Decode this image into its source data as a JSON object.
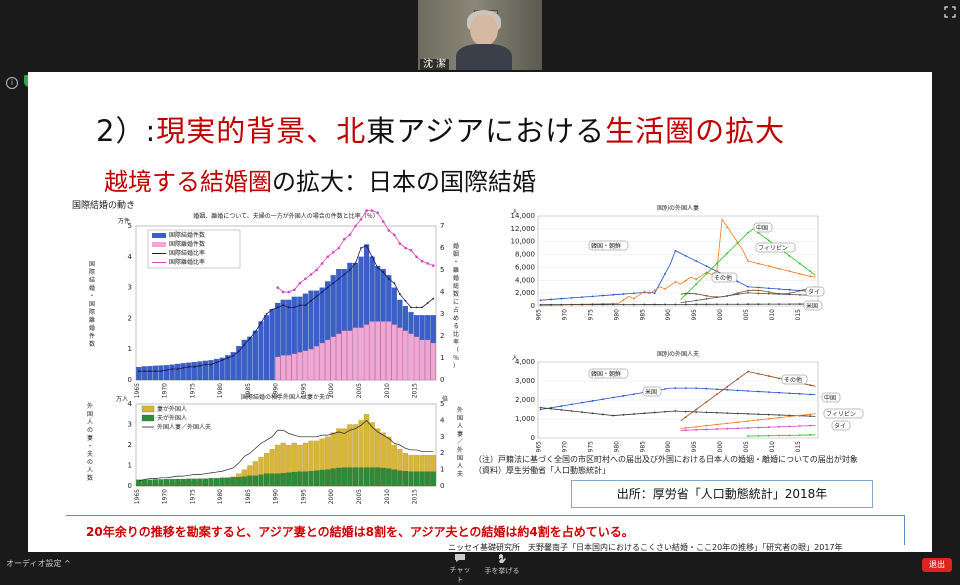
{
  "meeting": {
    "participant_name": "沈 潔",
    "audio_settings_label": "オーディオ設定",
    "chat_label": "チャット",
    "raise_hand_label": "手を挙げる",
    "exit_label": "退出"
  },
  "slide": {
    "title_num": "2）:",
    "title_red1": "現実的背景、北",
    "title_black": "東アジアにおける",
    "title_red2": "生活圏の拡大",
    "subtitle_red": "越境する結婚圏",
    "subtitle_black": "の拡大：日本の国際結婚",
    "section_label": "国際結婚の動き",
    "note_line1": "（注）戸籍法に基づく全国の市区町村への届出及び外国における日本人の婚姻・離婚についての届出が対象",
    "note_line2": "（資料）厚生労働省「人口動態統計」",
    "source": "出所：厚労省「人口動態統計」2018年",
    "bottom_text": "20年余りの推移を勘案すると、アジア妻との結婚は8割を、アジア夫との結婚は約4割を占めている。",
    "citation": "ニッセイ基礎研究所　天野馨南子「日本国内におけるこくさい結婚・ここ20年の推移」「研究者の眼」2017年"
  },
  "chart_data": [
    {
      "type": "bar",
      "title": "婚姻、離婚について、夫婦の一方が外国人の場合の件数と比率（％）",
      "ylabel": "国際結婚・国際離婚件数",
      "y_unit": "万件",
      "y2label": "婚姻・離婚総数に占める比率（％）",
      "ylim": [
        0,
        5
      ],
      "y2lim": [
        0,
        7
      ],
      "legend": [
        "国際結婚件数",
        "国際離婚件数",
        "国際結婚比率",
        "国際離婚比率"
      ],
      "x_ticks": [
        "1965",
        "1970",
        "1975",
        "1980",
        "1985",
        "1990",
        "1995",
        "2000",
        "2005",
        "2010",
        "2015"
      ],
      "x_start": 1965,
      "marriage_count": [
        0.42,
        0.44,
        0.45,
        0.46,
        0.47,
        0.48,
        0.5,
        0.52,
        0.54,
        0.56,
        0.58,
        0.6,
        0.62,
        0.64,
        0.68,
        0.72,
        0.8,
        0.9,
        1.1,
        1.3,
        1.4,
        1.6,
        1.9,
        2.1,
        2.3,
        2.5,
        2.6,
        2.6,
        2.7,
        2.7,
        2.8,
        2.9,
        2.9,
        3.0,
        3.2,
        3.4,
        3.6,
        3.6,
        3.8,
        3.8,
        4.0,
        4.4,
        4.0,
        3.7,
        3.6,
        3.4,
        3.0,
        2.6,
        2.4,
        2.2,
        2.1,
        2.1,
        2.1,
        2.1
      ],
      "divorce_count": [
        0,
        0,
        0,
        0,
        0,
        0,
        0,
        0,
        0,
        0,
        0,
        0,
        0,
        0,
        0,
        0,
        0,
        0,
        0,
        0,
        0,
        0,
        0,
        0,
        0,
        0.75,
        0.8,
        0.8,
        0.85,
        0.9,
        0.95,
        1.0,
        1.1,
        1.2,
        1.3,
        1.4,
        1.5,
        1.6,
        1.6,
        1.7,
        1.7,
        1.8,
        1.9,
        1.9,
        1.9,
        1.9,
        1.8,
        1.7,
        1.6,
        1.5,
        1.4,
        1.3,
        1.3,
        1.2
      ],
      "marriage_rate": [
        0.4,
        0.4,
        0.4,
        0.4,
        0.4,
        0.45,
        0.5,
        0.5,
        0.55,
        0.6,
        0.6,
        0.65,
        0.7,
        0.7,
        0.8,
        0.9,
        1.0,
        1.1,
        1.3,
        1.6,
        1.9,
        2.2,
        2.6,
        3.0,
        3.2,
        3.3,
        3.4,
        3.3,
        3.3,
        3.4,
        3.4,
        3.6,
        3.8,
        4.0,
        4.2,
        4.4,
        4.6,
        4.8,
        5.0,
        5.3,
        6.0,
        6.1,
        5.6,
        5.1,
        4.9,
        4.6,
        4.4,
        3.9,
        3.6,
        3.3,
        3.3,
        3.3,
        3.5,
        3.7
      ],
      "divorce_rate": [
        null,
        null,
        null,
        null,
        null,
        null,
        null,
        null,
        null,
        null,
        null,
        null,
        null,
        null,
        null,
        null,
        null,
        null,
        null,
        null,
        null,
        null,
        null,
        null,
        null,
        4.2,
        4.0,
        4.0,
        4.1,
        4.4,
        4.6,
        4.8,
        5.0,
        5.3,
        5.6,
        5.8,
        6.0,
        6.4,
        6.6,
        7.0,
        7.3,
        7.7,
        7.7,
        7.6,
        7.2,
        6.8,
        6.6,
        6.2,
        6.0,
        5.9,
        5.6,
        5.4,
        5.3,
        5.2
      ]
    },
    {
      "type": "bar",
      "title": "国際結婚の相手外国人は妻か夫か",
      "ylabel": "外国人の妻・夫の人数",
      "y_unit": "万人",
      "y2label": "外国人妻／外国人夫",
      "y2_unit": "倍",
      "ylim": [
        0,
        4
      ],
      "y2lim": [
        0,
        5
      ],
      "legend": [
        "妻が外国人",
        "夫が外国人",
        "外国人妻／外国人夫"
      ],
      "x_ticks": [
        "1965",
        "1970",
        "1975",
        "1980",
        "1985",
        "1990",
        "1995",
        "2000",
        "2005",
        "2010",
        "2015"
      ],
      "x_start": 1965,
      "wife_foreign": [
        0.1,
        0.1,
        0.12,
        0.12,
        0.14,
        0.15,
        0.16,
        0.18,
        0.2,
        0.2,
        0.22,
        0.24,
        0.25,
        0.27,
        0.3,
        0.35,
        0.4,
        0.45,
        0.6,
        0.8,
        1.0,
        1.2,
        1.4,
        1.6,
        1.8,
        2.0,
        2.1,
        2.0,
        2.1,
        2.0,
        2.1,
        2.2,
        2.2,
        2.3,
        2.4,
        2.6,
        2.8,
        2.8,
        3.0,
        3.0,
        3.2,
        3.5,
        3.1,
        2.8,
        2.6,
        2.4,
        2.0,
        1.8,
        1.6,
        1.5,
        1.5,
        1.5,
        1.5,
        1.5
      ],
      "husband_foreign": [
        0.3,
        0.3,
        0.3,
        0.32,
        0.32,
        0.33,
        0.33,
        0.34,
        0.34,
        0.35,
        0.35,
        0.36,
        0.36,
        0.38,
        0.38,
        0.4,
        0.4,
        0.42,
        0.43,
        0.45,
        0.5,
        0.5,
        0.55,
        0.6,
        0.6,
        0.6,
        0.62,
        0.65,
        0.68,
        0.7,
        0.7,
        0.72,
        0.75,
        0.78,
        0.8,
        0.85,
        0.88,
        0.9,
        0.9,
        0.9,
        0.9,
        0.9,
        0.9,
        0.9,
        0.88,
        0.85,
        0.8,
        0.75,
        0.72,
        0.7,
        0.7,
        0.7,
        0.7,
        0.7
      ],
      "ratio": [
        0.3,
        0.4,
        0.45,
        0.45,
        0.5,
        0.5,
        0.55,
        0.6,
        0.6,
        0.65,
        0.7,
        0.7,
        0.75,
        0.8,
        0.85,
        0.9,
        1.0,
        1.1,
        1.4,
        1.8,
        2.0,
        2.3,
        2.6,
        2.8,
        3.0,
        3.4,
        3.4,
        3.2,
        3.1,
        3.0,
        3.0,
        3.0,
        3.0,
        3.1,
        3.1,
        3.2,
        3.3,
        3.2,
        3.4,
        3.5,
        3.7,
        4.0,
        3.6,
        3.3,
        3.1,
        2.9,
        2.6,
        2.5,
        2.3,
        2.2,
        2.2,
        2.1,
        2.1,
        2.1
      ]
    },
    {
      "type": "line",
      "title": "国別の外国人妻",
      "y_unit": "人",
      "ylim": [
        0,
        14000
      ],
      "y_ticks": [
        "0",
        "2,000",
        "4,000",
        "6,000",
        "8,000",
        "10,000",
        "12,000",
        "14,000"
      ],
      "x_ticks": [
        "1965",
        "1970",
        "1975",
        "1980",
        "1985",
        "1990",
        "1995",
        "2000",
        "2005",
        "2010",
        "2015"
      ],
      "series_labels": [
        "中国",
        "フィリピン",
        "韓国・朝鮮",
        "その他",
        "タイ",
        "米国"
      ]
    },
    {
      "type": "line",
      "title": "国別の外国人夫",
      "y_unit": "人",
      "ylim": [
        0,
        4000
      ],
      "y_ticks": [
        "0",
        "1,000",
        "2,000",
        "3,000",
        "4,000"
      ],
      "x_ticks": [
        "1965",
        "1970",
        "1975",
        "1980",
        "1985",
        "1990",
        "1995",
        "2000",
        "2005",
        "2010",
        "2015"
      ],
      "series_labels": [
        "韓国・朝鮮",
        "その他",
        "米国",
        "中国",
        "フィリピン",
        "タイ"
      ]
    }
  ]
}
